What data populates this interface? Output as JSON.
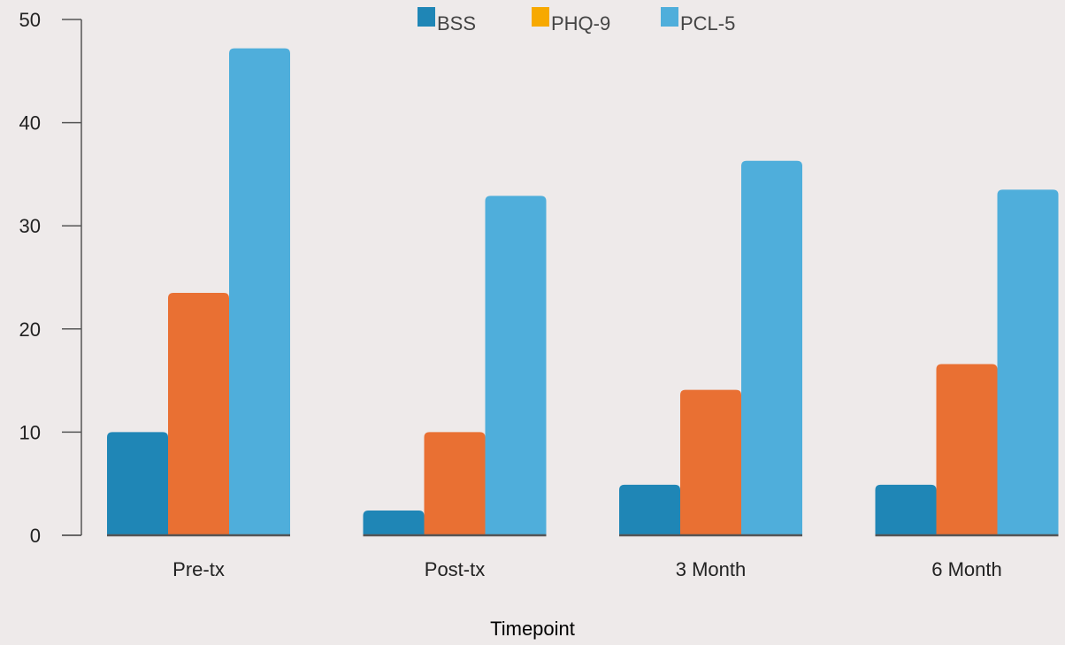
{
  "chart_data": {
    "type": "bar",
    "title": "",
    "xlabel": "Timepoint",
    "ylabel": "",
    "ylim": [
      0,
      50
    ],
    "yticks": [
      0,
      10,
      20,
      30,
      40,
      50
    ],
    "grid": false,
    "legend_position": "top-center",
    "categories": [
      "Pre-tx",
      "Post-tx",
      "3 Month",
      "6 Month"
    ],
    "series": [
      {
        "name": "BSS",
        "values": [
          10,
          2.4,
          4.9,
          4.9
        ],
        "color": "#1F86B6",
        "legend_color": "#1F86B6"
      },
      {
        "name": "PHQ-9",
        "values": [
          23.5,
          10,
          14.1,
          16.6
        ],
        "color": "#E97033",
        "legend_color": "#F7A900"
      },
      {
        "name": "PCL-5",
        "values": [
          47.2,
          32.9,
          36.3,
          33.5
        ],
        "color": "#4FAEDB",
        "legend_color": "#4FAEDB"
      }
    ],
    "colors": {
      "axis": "#555555",
      "text": "#222222",
      "background": "#EEEAEA"
    }
  }
}
